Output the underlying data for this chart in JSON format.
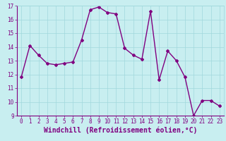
{
  "x": [
    0,
    1,
    2,
    3,
    4,
    5,
    6,
    7,
    8,
    9,
    10,
    11,
    12,
    13,
    14,
    15,
    16,
    17,
    18,
    19,
    20,
    21,
    22,
    23
  ],
  "y": [
    11.8,
    14.1,
    13.4,
    12.8,
    12.7,
    12.8,
    12.9,
    14.5,
    16.7,
    16.9,
    16.5,
    16.4,
    13.9,
    13.4,
    13.1,
    16.6,
    11.6,
    13.7,
    13.0,
    11.8,
    9.0,
    10.1,
    10.1,
    9.7
  ],
  "line_color": "#800080",
  "marker": "D",
  "marker_size": 2.0,
  "bg_color": "#c8eef0",
  "grid_color": "#a0d8dc",
  "xlabel": "Windchill (Refroidissement éolien,°C)",
  "xlabel_color": "#800080",
  "ylim": [
    9,
    17
  ],
  "xlim": [
    -0.5,
    23.5
  ],
  "yticks": [
    9,
    10,
    11,
    12,
    13,
    14,
    15,
    16,
    17
  ],
  "xticks": [
    0,
    1,
    2,
    3,
    4,
    5,
    6,
    7,
    8,
    9,
    10,
    11,
    12,
    13,
    14,
    15,
    16,
    17,
    18,
    19,
    20,
    21,
    22,
    23
  ],
  "tick_color": "#800080",
  "tick_fontsize": 5.5,
  "xlabel_fontsize": 7.0,
  "line_width": 1.0,
  "spine_color": "#800080"
}
